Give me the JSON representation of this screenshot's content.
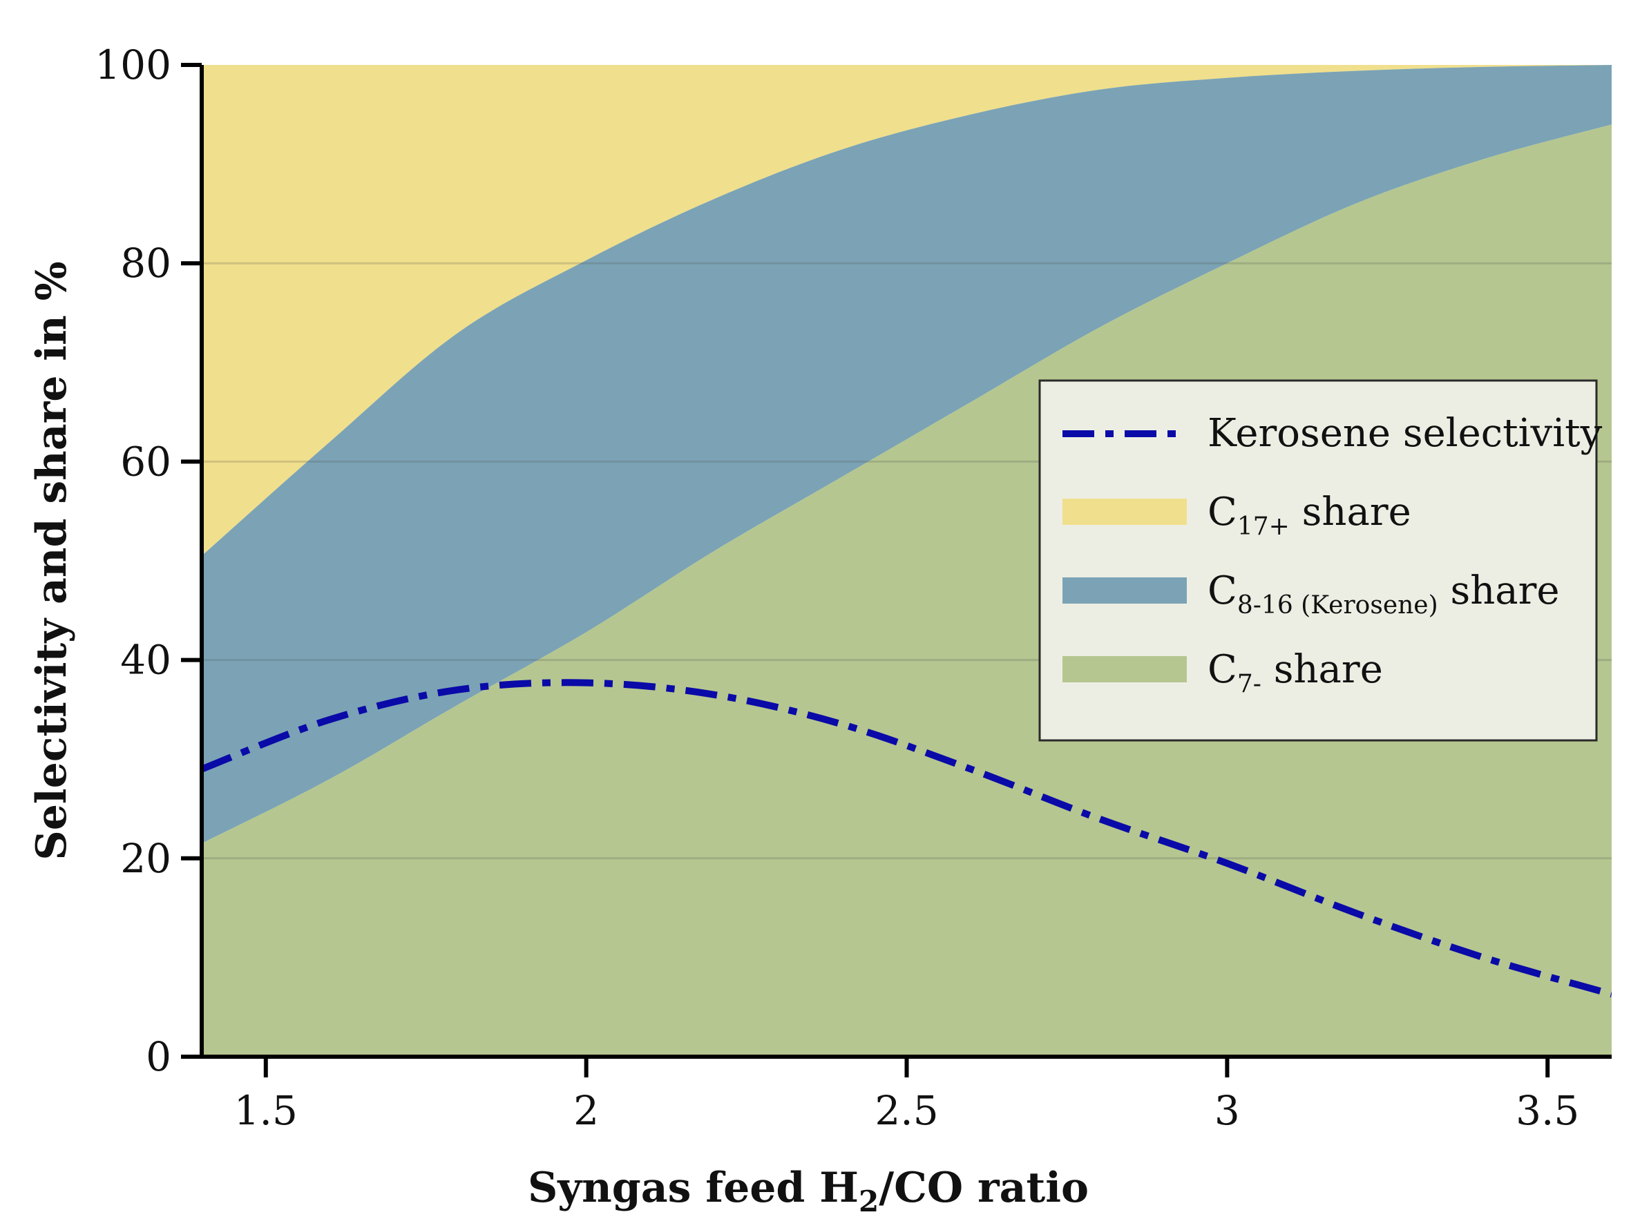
{
  "chart_data": {
    "type": "area",
    "title": "",
    "xlabel": "Syngas feed H2/CO ratio",
    "xlabel_parts": {
      "pre": "Syngas feed H",
      "sub": "2",
      "post": "/CO ratio"
    },
    "ylabel": "Selectivity and share in %",
    "xlim": [
      1.4,
      3.6
    ],
    "ylim": [
      0,
      100
    ],
    "x_ticks": [
      1.5,
      2,
      2.5,
      3,
      3.5
    ],
    "x_tick_labels": [
      "1.5",
      "2",
      "2.5",
      "3",
      "3.5"
    ],
    "y_ticks": [
      0,
      20,
      40,
      60,
      80,
      100
    ],
    "y_tick_labels": [
      "0",
      "20",
      "40",
      "60",
      "80",
      "100"
    ],
    "grid": "horizontal",
    "legend_position": "center-right",
    "x": [
      1.4,
      1.6,
      1.8,
      2.0,
      2.2,
      2.4,
      2.6,
      2.8,
      3.0,
      3.2,
      3.4,
      3.6
    ],
    "series": [
      {
        "name": "Kerosene selectivity",
        "legend_label": {
          "pre": "Kerosene selectivity",
          "sub": "",
          "post": ""
        },
        "kind": "line",
        "style": "dash-dot",
        "color": "#0a0aa8",
        "values": [
          29,
          34,
          37,
          37.7,
          36.5,
          33.5,
          29,
          24,
          19.5,
          14.5,
          10,
          6.3
        ]
      },
      {
        "name": "C17+ share",
        "legend_label": {
          "pre": "C",
          "sub": "17+",
          "post": " share"
        },
        "kind": "area",
        "color": "#f0df8c",
        "lower": [
          50.5,
          62,
          73,
          80.3,
          86.5,
          91.5,
          95,
          97.5,
          98.7,
          99.4,
          99.8,
          100
        ],
        "upper": [
          100,
          100,
          100,
          100,
          100,
          100,
          100,
          100,
          100,
          100,
          100,
          100
        ]
      },
      {
        "name": "C8-16 (Kerosene) share",
        "legend_label": {
          "pre": "C",
          "sub": "8-16 (Kerosene)",
          "post": " share"
        },
        "kind": "area",
        "color": "#7ba3b5",
        "lower": [
          21.5,
          28,
          35.5,
          42.8,
          51,
          58.5,
          66,
          73.5,
          80,
          86,
          90.5,
          94
        ],
        "upper": [
          50.5,
          62,
          73,
          80.3,
          86.5,
          91.5,
          95,
          97.5,
          98.7,
          99.4,
          99.8,
          100
        ]
      },
      {
        "name": "C7- share",
        "legend_label": {
          "pre": "C",
          "sub": "7-",
          "post": " share"
        },
        "kind": "area",
        "color": "#b5c690",
        "lower": [
          0,
          0,
          0,
          0,
          0,
          0,
          0,
          0,
          0,
          0,
          0,
          0
        ],
        "upper": [
          21.5,
          28,
          35.5,
          42.8,
          51,
          58.5,
          66,
          73.5,
          80,
          86,
          90.5,
          94
        ]
      }
    ]
  }
}
